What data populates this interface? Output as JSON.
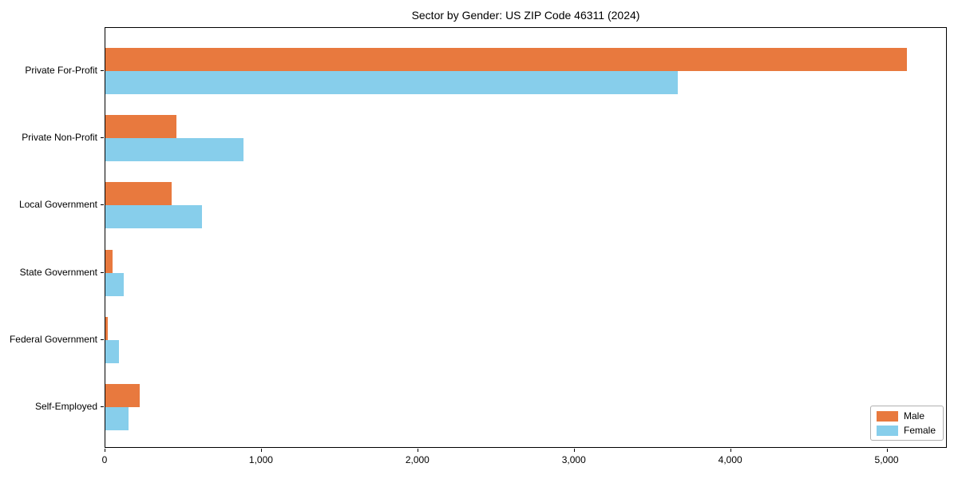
{
  "title": "Sector by Gender: US ZIP Code 46311 (2024)",
  "chart_data": {
    "type": "bar",
    "orientation": "horizontal",
    "title": "Sector by Gender: US ZIP Code 46311 (2024)",
    "categories": [
      "Private For-Profit",
      "Private Non-Profit",
      "Local Government",
      "State Government",
      "Federal Government",
      "Self-Employed"
    ],
    "series": [
      {
        "name": "Male",
        "color": "#e8793e",
        "values": [
          5125,
          455,
          425,
          45,
          15,
          220
        ]
      },
      {
        "name": "Female",
        "color": "#87ceeb",
        "values": [
          3660,
          885,
          620,
          115,
          85,
          150
        ]
      }
    ],
    "xlabel": "",
    "ylabel": "",
    "xlim": [
      0,
      5385
    ],
    "x_ticks": [
      {
        "value": 0,
        "label": "0"
      },
      {
        "value": 1000,
        "label": "1,000"
      },
      {
        "value": 2000,
        "label": "2,000"
      },
      {
        "value": 3000,
        "label": "3,000"
      },
      {
        "value": 4000,
        "label": "4,000"
      },
      {
        "value": 5000,
        "label": "5,000"
      }
    ],
    "grid": false,
    "legend_position": "lower right",
    "legend_entries": [
      "Male",
      "Female"
    ]
  },
  "colors": {
    "male": "#e8793e",
    "female": "#87ceeb",
    "axis": "#000000",
    "background": "#ffffff"
  }
}
